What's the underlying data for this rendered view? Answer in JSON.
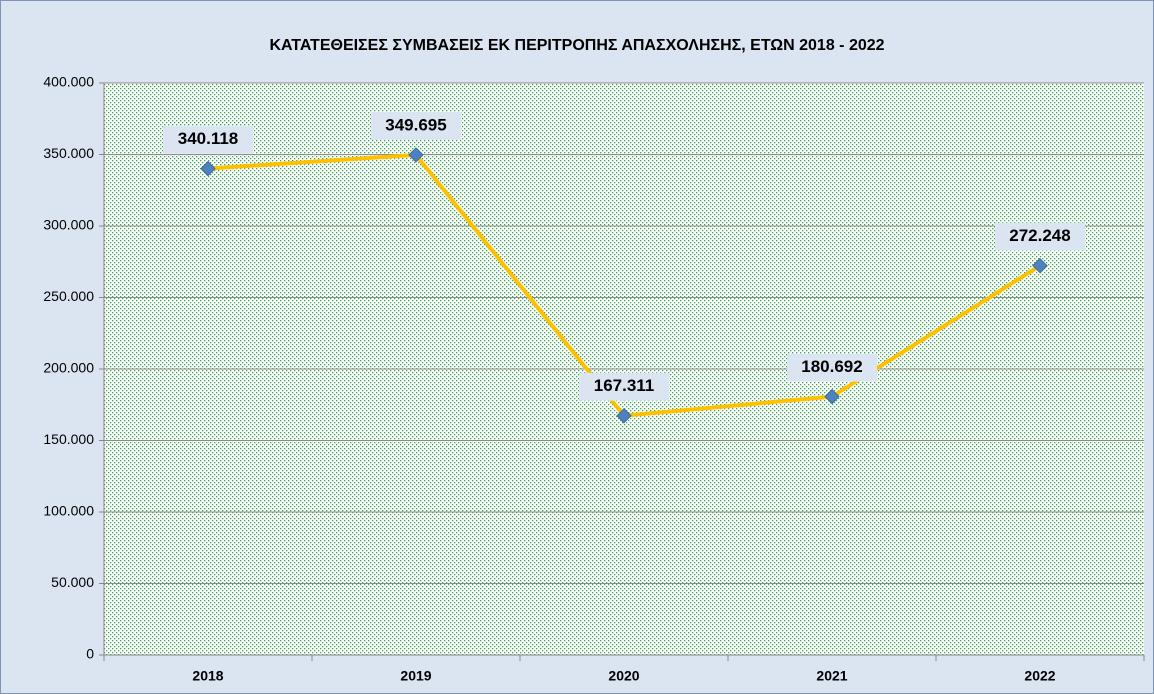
{
  "chart_data": {
    "type": "line",
    "title": "ΚΑΤΑΤΕΘΕΙΣΕΣ ΣΥΜΒΑΣΕΙΣ ΕΚ ΠΕΡΙΤΡΟΠΗΣ ΑΠΑΣΧΟΛΗΣΗΣ, ΕΤΩΝ 2018 - 2022",
    "categories": [
      "2018",
      "2019",
      "2020",
      "2021",
      "2022"
    ],
    "values": [
      340118,
      349695,
      167311,
      180692,
      272248
    ],
    "value_labels": [
      "340.118",
      "349.695",
      "167.311",
      "180.692",
      "272.248"
    ],
    "color": "#ffc000",
    "marker_color": "#4f81bd",
    "ylim": [
      0,
      400000
    ],
    "yticks": [
      0,
      {
        "value": 50000,
        "label": "50.000"
      },
      {
        "value": 100000,
        "label": "100.000"
      },
      {
        "value": 150000,
        "label": "150.000"
      },
      {
        "value": 200000,
        "label": "200.000"
      },
      {
        "value": 250000,
        "label": "250.000"
      },
      {
        "value": 300000,
        "label": "300.000"
      },
      {
        "value": 350000,
        "label": "350.000"
      },
      {
        "value": 400000,
        "label": "400.000"
      }
    ],
    "grid": true
  }
}
